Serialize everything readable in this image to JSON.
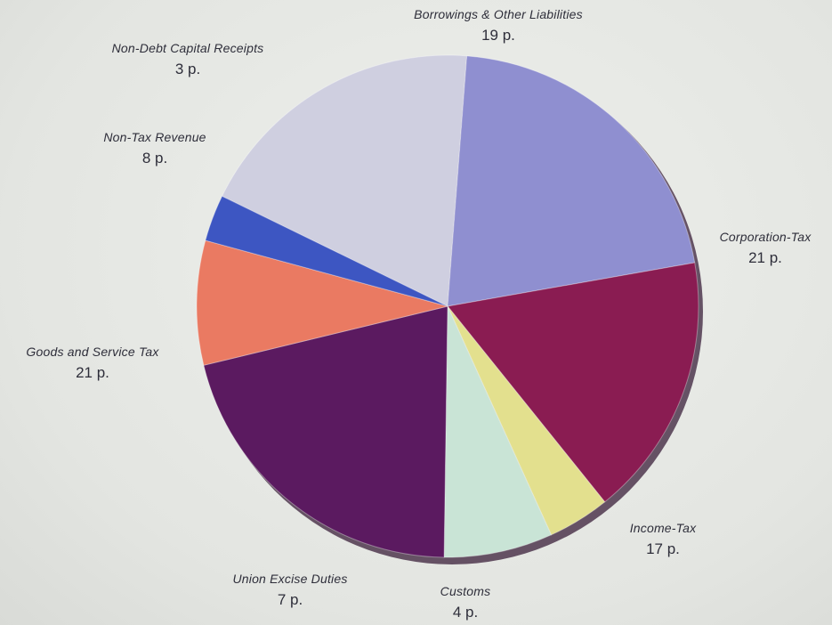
{
  "chart_data": {
    "type": "pie",
    "unit": "p.",
    "slices": [
      {
        "label": "Borrowings & Other Liabilities",
        "value": 19,
        "display": "19  p.",
        "color": "#cfcfe0"
      },
      {
        "label": "Corporation-Tax",
        "value": 21,
        "display": "21 p.",
        "color": "#8f8fd0"
      },
      {
        "label": "Income-Tax",
        "value": 17,
        "display": "17 p.",
        "color": "#8a1c52"
      },
      {
        "label": "Customs",
        "value": 4,
        "display": "4 p.",
        "color": "#e3e08e"
      },
      {
        "label": "Union Excise Duties",
        "value": 7,
        "display": "7 p.",
        "color": "#c9e4d6"
      },
      {
        "label": "Goods and Service Tax",
        "value": 21,
        "display": "21 p.",
        "color": "#5b1a60"
      },
      {
        "label": "Non-Tax Revenue",
        "value": 8,
        "display": "8 p.",
        "color": "#ea7a62"
      },
      {
        "label": "Non-Debt Capital Receipts",
        "value": 3,
        "display": "3 p.",
        "color": "#3d56c2"
      }
    ]
  }
}
